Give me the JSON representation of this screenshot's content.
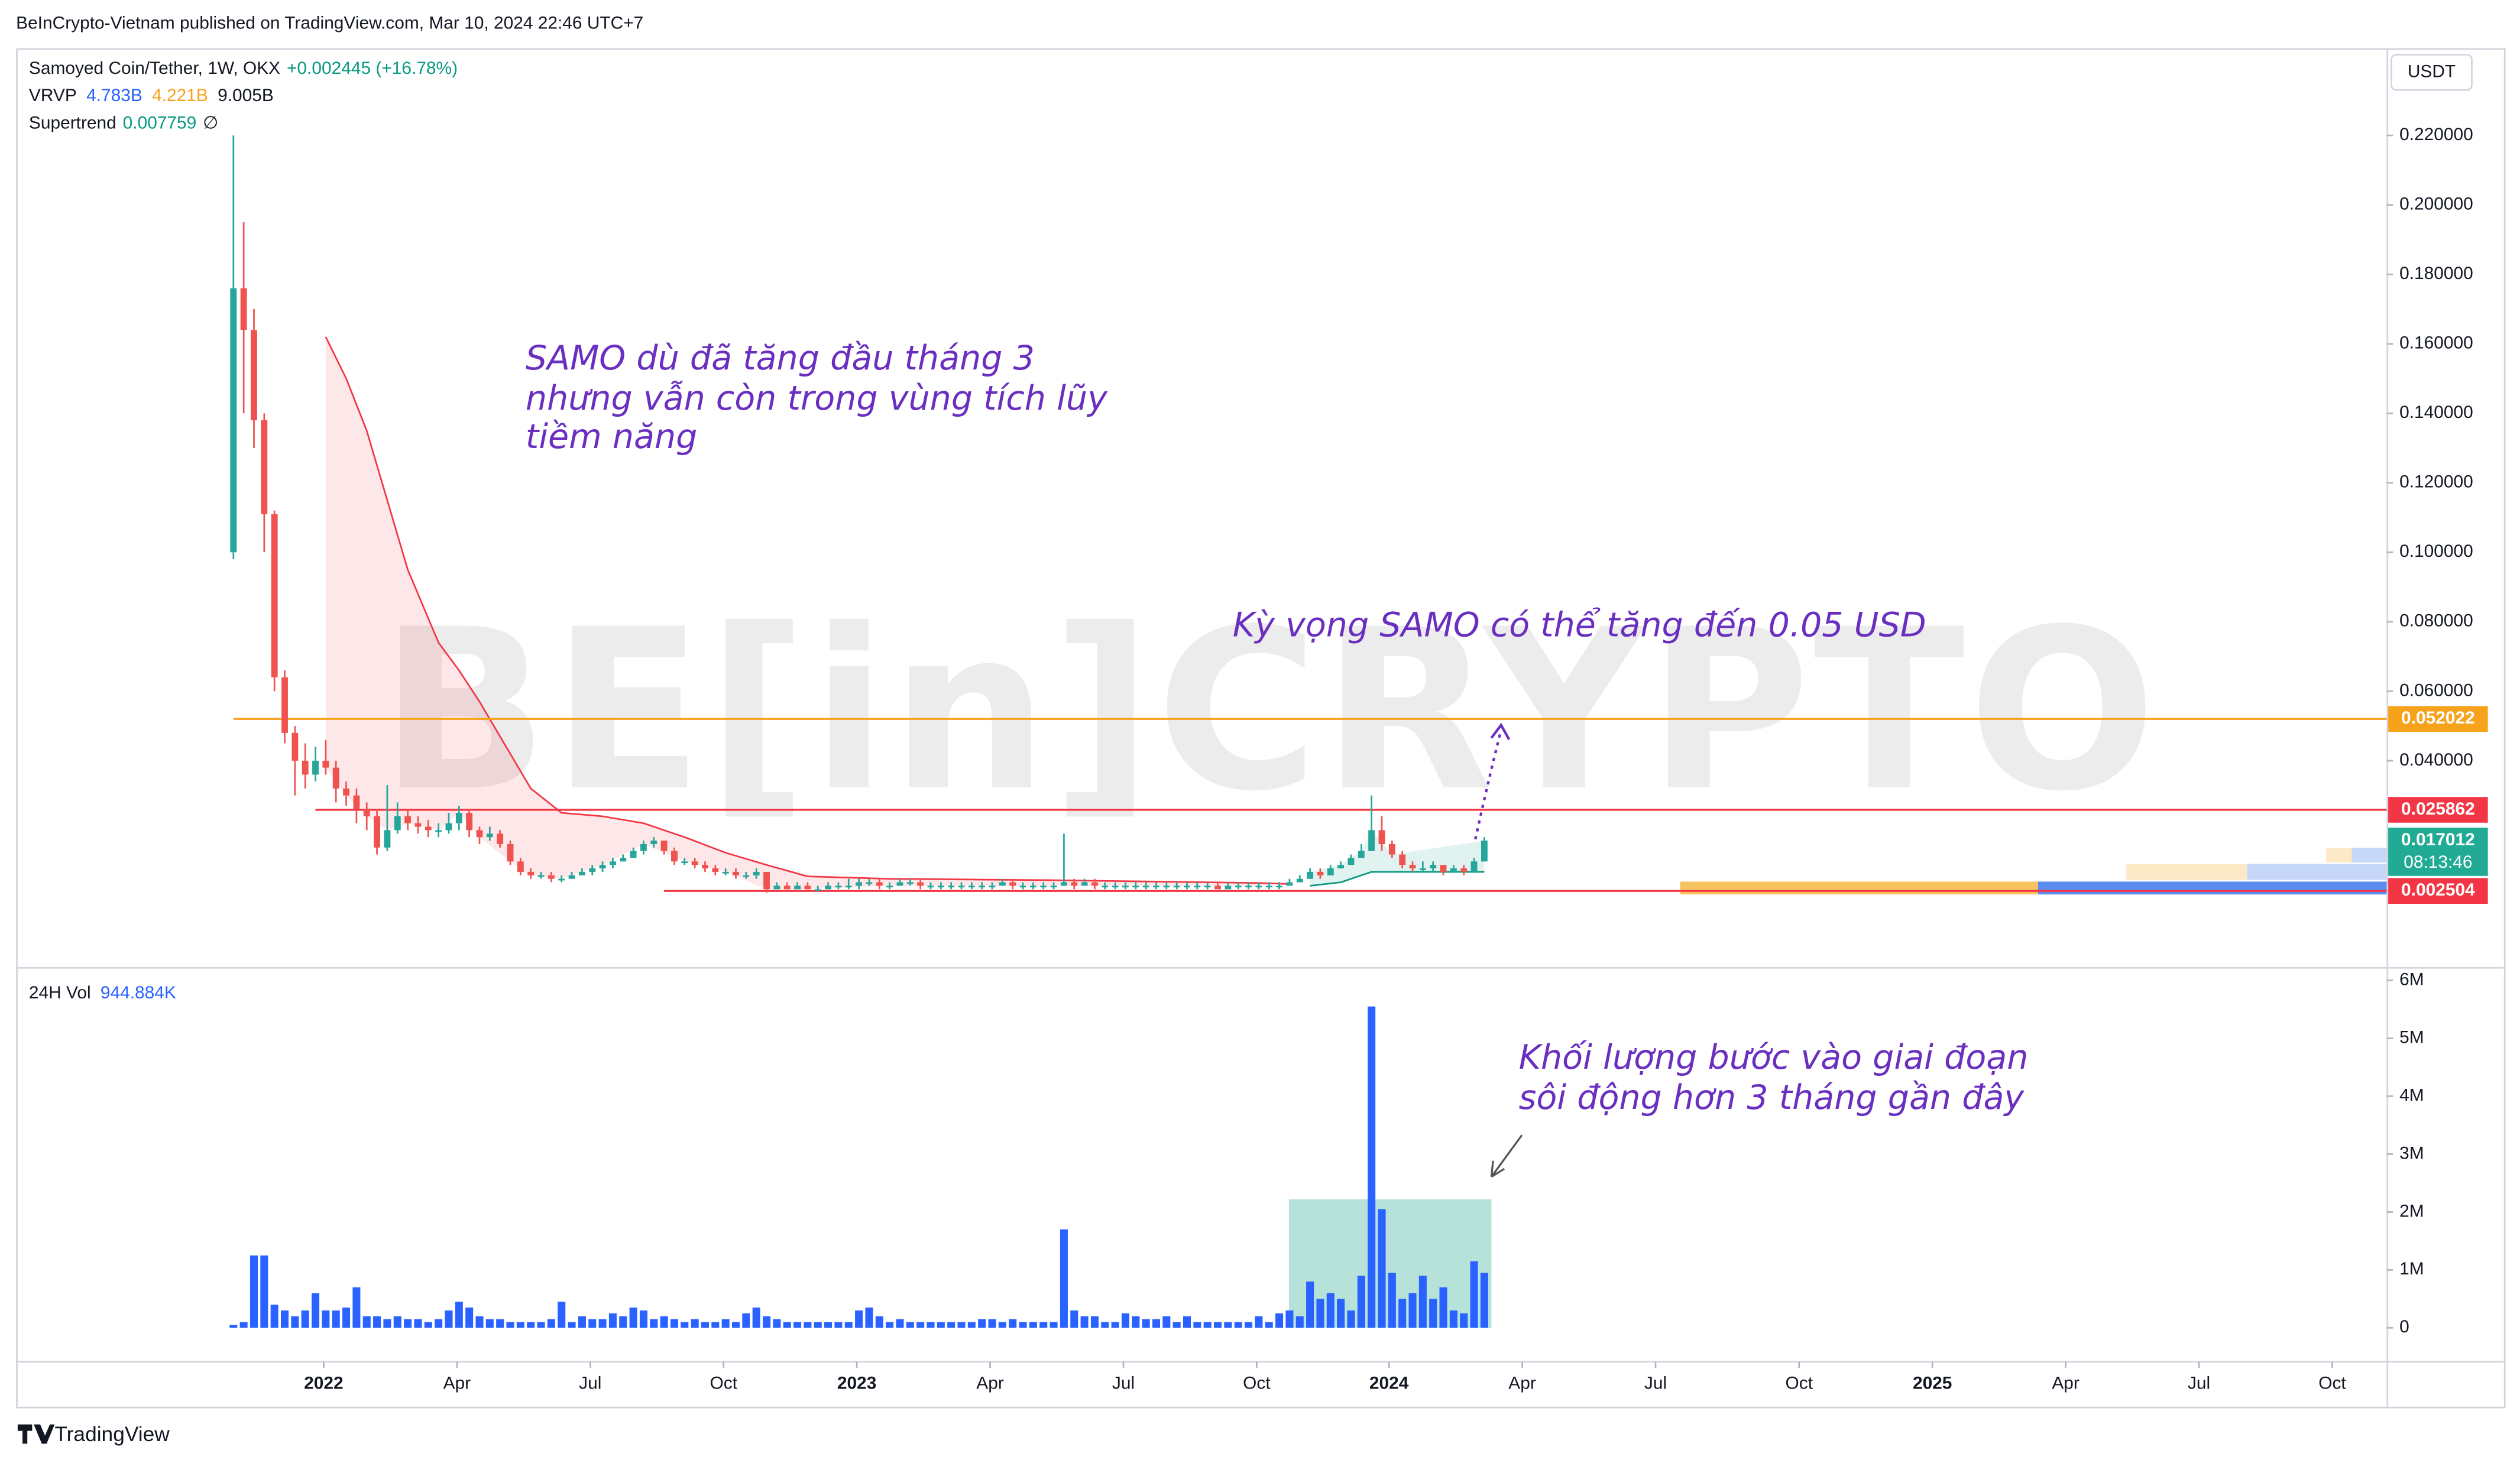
{
  "header": "BeInCrypto-Vietnam published on TradingView.com, Mar 10, 2024 22:46 UTC+7",
  "footer": "TradingView",
  "watermark": "BE[in]CRYPTO",
  "annotations": [
    [
      "SAMO dù đã tăng đầu tháng 3",
      "nhưng vẫn còn trong vùng tích lũy",
      "tiềm năng"
    ],
    [
      "Kỳ vọng SAMO có thể tăng đến 0.05 USD"
    ],
    [
      "Khối lượng bước vào giai đoạn",
      "sôi động hơn 3 tháng gần đây"
    ]
  ],
  "chart_data": [
    {
      "type": "candlestick",
      "title": "Samoyed Coin/Tether, 1W, OKX",
      "change": "+0.002445 (+16.78%)",
      "currency": "USDT",
      "up_color": "#26a69a",
      "down_color": "#ef5350",
      "open": [
        0.1,
        0.176,
        0.164,
        0.138,
        0.111,
        0.064,
        0.048,
        0.04,
        0.036,
        0.04,
        0.038,
        0.032,
        0.03,
        0.026,
        0.024,
        0.015,
        0.02,
        0.024,
        0.022,
        0.021,
        0.02,
        0.02,
        0.022,
        0.025,
        0.02,
        0.018,
        0.019,
        0.016,
        0.011,
        0.008,
        0.007,
        0.007,
        0.006,
        0.006,
        0.007,
        0.008,
        0.009,
        0.01,
        0.011,
        0.012,
        0.014,
        0.016,
        0.017,
        0.014,
        0.011,
        0.011,
        0.01,
        0.009,
        0.008,
        0.008,
        0.007,
        0.007,
        0.008,
        0.003,
        0.004,
        0.003,
        0.004,
        0.003,
        0.003,
        0.004,
        0.004,
        0.004,
        0.005,
        0.005,
        0.004,
        0.004,
        0.005,
        0.005,
        0.004,
        0.004,
        0.004,
        0.004,
        0.004,
        0.004,
        0.004,
        0.004,
        0.005,
        0.004,
        0.004,
        0.004,
        0.004,
        0.004,
        0.005,
        0.004,
        0.005,
        0.004,
        0.004,
        0.004,
        0.004,
        0.004,
        0.004,
        0.004,
        0.004,
        0.004,
        0.004,
        0.004,
        0.004,
        0.003,
        0.004,
        0.004,
        0.004,
        0.004,
        0.004,
        0.004,
        0.005,
        0.006,
        0.008,
        0.007,
        0.009,
        0.01,
        0.012,
        0.014,
        0.02,
        0.016,
        0.013,
        0.01,
        0.009,
        0.009,
        0.01,
        0.008,
        0.009,
        0.008,
        0.011
      ],
      "high": [
        0.22,
        0.195,
        0.17,
        0.14,
        0.112,
        0.066,
        0.05,
        0.045,
        0.044,
        0.046,
        0.04,
        0.034,
        0.032,
        0.028,
        0.026,
        0.033,
        0.028,
        0.026,
        0.024,
        0.023,
        0.022,
        0.025,
        0.027,
        0.026,
        0.021,
        0.021,
        0.02,
        0.017,
        0.012,
        0.009,
        0.008,
        0.008,
        0.007,
        0.008,
        0.009,
        0.01,
        0.011,
        0.012,
        0.013,
        0.015,
        0.017,
        0.018,
        0.017,
        0.015,
        0.012,
        0.012,
        0.011,
        0.01,
        0.009,
        0.009,
        0.008,
        0.009,
        0.008,
        0.005,
        0.005,
        0.005,
        0.005,
        0.004,
        0.005,
        0.005,
        0.006,
        0.006,
        0.006,
        0.006,
        0.005,
        0.006,
        0.006,
        0.006,
        0.005,
        0.005,
        0.005,
        0.005,
        0.005,
        0.005,
        0.005,
        0.006,
        0.006,
        0.005,
        0.005,
        0.005,
        0.005,
        0.019,
        0.006,
        0.006,
        0.006,
        0.005,
        0.005,
        0.005,
        0.005,
        0.005,
        0.005,
        0.005,
        0.005,
        0.005,
        0.005,
        0.005,
        0.005,
        0.005,
        0.005,
        0.005,
        0.005,
        0.005,
        0.005,
        0.006,
        0.007,
        0.009,
        0.009,
        0.01,
        0.011,
        0.013,
        0.016,
        0.03,
        0.024,
        0.017,
        0.014,
        0.011,
        0.011,
        0.011,
        0.01,
        0.01,
        0.01,
        0.012,
        0.018
      ],
      "low": [
        0.098,
        0.14,
        0.13,
        0.1,
        0.06,
        0.045,
        0.03,
        0.032,
        0.034,
        0.036,
        0.028,
        0.027,
        0.022,
        0.02,
        0.013,
        0.014,
        0.019,
        0.02,
        0.019,
        0.018,
        0.018,
        0.019,
        0.02,
        0.018,
        0.016,
        0.017,
        0.015,
        0.01,
        0.007,
        0.006,
        0.006,
        0.005,
        0.005,
        0.006,
        0.007,
        0.007,
        0.008,
        0.009,
        0.011,
        0.012,
        0.013,
        0.015,
        0.013,
        0.01,
        0.01,
        0.009,
        0.008,
        0.007,
        0.007,
        0.006,
        0.006,
        0.006,
        0.002,
        0.003,
        0.003,
        0.003,
        0.003,
        0.003,
        0.003,
        0.003,
        0.003,
        0.003,
        0.004,
        0.003,
        0.003,
        0.004,
        0.004,
        0.003,
        0.003,
        0.003,
        0.003,
        0.003,
        0.003,
        0.003,
        0.003,
        0.004,
        0.003,
        0.003,
        0.003,
        0.003,
        0.003,
        0.004,
        0.003,
        0.004,
        0.003,
        0.003,
        0.003,
        0.003,
        0.003,
        0.003,
        0.003,
        0.003,
        0.003,
        0.003,
        0.003,
        0.003,
        0.003,
        0.003,
        0.003,
        0.003,
        0.003,
        0.003,
        0.003,
        0.004,
        0.005,
        0.006,
        0.006,
        0.007,
        0.009,
        0.01,
        0.012,
        0.014,
        0.014,
        0.012,
        0.009,
        0.008,
        0.008,
        0.008,
        0.007,
        0.008,
        0.007,
        0.008,
        0.011
      ],
      "close": [
        0.176,
        0.164,
        0.138,
        0.111,
        0.064,
        0.048,
        0.04,
        0.036,
        0.04,
        0.038,
        0.032,
        0.03,
        0.026,
        0.024,
        0.015,
        0.02,
        0.024,
        0.022,
        0.021,
        0.02,
        0.02,
        0.022,
        0.025,
        0.02,
        0.018,
        0.019,
        0.016,
        0.011,
        0.008,
        0.007,
        0.007,
        0.006,
        0.006,
        0.007,
        0.008,
        0.009,
        0.01,
        0.011,
        0.012,
        0.014,
        0.016,
        0.017,
        0.014,
        0.011,
        0.011,
        0.01,
        0.009,
        0.008,
        0.008,
        0.007,
        0.007,
        0.008,
        0.003,
        0.004,
        0.003,
        0.004,
        0.003,
        0.003,
        0.004,
        0.004,
        0.004,
        0.005,
        0.005,
        0.004,
        0.004,
        0.005,
        0.005,
        0.004,
        0.004,
        0.004,
        0.004,
        0.004,
        0.004,
        0.004,
        0.004,
        0.005,
        0.004,
        0.004,
        0.004,
        0.004,
        0.004,
        0.005,
        0.004,
        0.005,
        0.004,
        0.004,
        0.004,
        0.004,
        0.004,
        0.004,
        0.004,
        0.004,
        0.004,
        0.004,
        0.004,
        0.004,
        0.003,
        0.004,
        0.004,
        0.004,
        0.004,
        0.004,
        0.004,
        0.005,
        0.006,
        0.008,
        0.007,
        0.009,
        0.01,
        0.012,
        0.014,
        0.02,
        0.016,
        0.013,
        0.01,
        0.009,
        0.009,
        0.01,
        0.008,
        0.009,
        0.008,
        0.011,
        0.017
      ],
      "xlim": [
        -21.2,
        210
      ],
      "xticks": [
        {
          "value": 8.8,
          "label": "2022"
        },
        {
          "value": 21.8,
          "label": "Apr"
        },
        {
          "value": 34.8,
          "label": "Jul"
        },
        {
          "value": 47.8,
          "label": "Oct"
        },
        {
          "value": 60.8,
          "label": "2023"
        },
        {
          "value": 73.8,
          "label": "Apr"
        },
        {
          "value": 86.8,
          "label": "Jul"
        },
        {
          "value": 99.8,
          "label": "Oct"
        },
        {
          "value": 112.7,
          "label": "2024"
        },
        {
          "value": 125.7,
          "label": "Apr"
        },
        {
          "value": 138.7,
          "label": "Jul"
        },
        {
          "value": 152.7,
          "label": "Oct"
        },
        {
          "value": 165.7,
          "label": "2025"
        },
        {
          "value": 178.7,
          "label": "Apr"
        },
        {
          "value": 191.7,
          "label": "Jul"
        },
        {
          "value": 204.7,
          "label": "Oct"
        }
      ],
      "ylim": [
        -0.0187,
        0.2451
      ],
      "yticks": [
        {
          "value": 0.22,
          "label": "0.220000"
        },
        {
          "value": 0.2,
          "label": "0.200000"
        },
        {
          "value": 0.18,
          "label": "0.180000"
        },
        {
          "value": 0.16,
          "label": "0.160000"
        },
        {
          "value": 0.14,
          "label": "0.140000"
        },
        {
          "value": 0.12,
          "label": "0.120000"
        },
        {
          "value": 0.1,
          "label": "0.100000"
        },
        {
          "value": 0.08,
          "label": "0.080000"
        },
        {
          "value": 0.06,
          "label": "0.060000"
        },
        {
          "value": 0.04,
          "label": "0.040000"
        }
      ],
      "levels": [
        {
          "value": 0.052022,
          "color": "#f7a21b",
          "from": 0
        },
        {
          "value": 0.025862,
          "color": "#f23645",
          "from": 8
        },
        {
          "value": 0.002504,
          "color": "#f23645",
          "from": 42
        }
      ],
      "last_price": 0.017012,
      "countdown": "08:13:46",
      "last_color": "#22ab94",
      "vrvp": {
        "label": "VRVP",
        "up_text": "4.783B",
        "down_text": "4.221B",
        "total_text": "9.005B",
        "up_color": "#5b8cf0",
        "down_color": "#f7c35f",
        "rows": [
          {
            "low": 0.0015,
            "high": 0.0052,
            "up": 3.0,
            "down": 3.08,
            "value_area": true
          },
          {
            "low": 0.0057,
            "high": 0.0103,
            "up": 1.2,
            "down": 1.04,
            "value_area": false
          },
          {
            "low": 0.0107,
            "high": 0.0149,
            "up": 0.3,
            "down": 0.22,
            "value_area": false
          }
        ]
      },
      "supertrend": {
        "label": "Supertrend",
        "value": 0.007759,
        "extra": "∅",
        "down": {
          "color": "#f23645",
          "x": [
            9,
            11,
            13,
            15,
            17,
            20,
            22,
            24,
            27,
            29,
            32,
            36,
            40,
            44,
            48,
            52,
            56,
            64,
            72,
            80,
            90,
            100,
            103
          ],
          "values": [
            0.162,
            0.15,
            0.135,
            0.115,
            0.095,
            0.074,
            0.066,
            0.057,
            0.042,
            0.032,
            0.025,
            0.024,
            0.022,
            0.018,
            0.0135,
            0.01,
            0.0067,
            0.006,
            0.0058,
            0.0056,
            0.0052,
            0.0048,
            0.0045
          ]
        },
        "up": {
          "color": "#089981",
          "x": [
            105,
            108,
            110,
            111,
            113,
            122
          ],
          "values": [
            0.004,
            0.005,
            0.007,
            0.008,
            0.008,
            0.008
          ]
        }
      }
    },
    {
      "type": "bar",
      "title": "24H Vol",
      "last": "944.884K",
      "color": "#2962ff",
      "values": [
        0.05,
        0.1,
        1.25,
        1.25,
        0.4,
        0.3,
        0.2,
        0.3,
        0.6,
        0.3,
        0.3,
        0.35,
        0.7,
        0.2,
        0.2,
        0.15,
        0.2,
        0.15,
        0.15,
        0.1,
        0.15,
        0.3,
        0.45,
        0.35,
        0.2,
        0.15,
        0.15,
        0.1,
        0.1,
        0.1,
        0.1,
        0.15,
        0.45,
        0.1,
        0.2,
        0.15,
        0.15,
        0.25,
        0.2,
        0.35,
        0.3,
        0.15,
        0.2,
        0.15,
        0.1,
        0.15,
        0.1,
        0.1,
        0.15,
        0.1,
        0.25,
        0.35,
        0.2,
        0.15,
        0.1,
        0.1,
        0.1,
        0.1,
        0.1,
        0.1,
        0.1,
        0.3,
        0.35,
        0.2,
        0.1,
        0.15,
        0.1,
        0.1,
        0.1,
        0.1,
        0.1,
        0.1,
        0.1,
        0.15,
        0.15,
        0.1,
        0.15,
        0.1,
        0.1,
        0.1,
        0.1,
        1.7,
        0.3,
        0.2,
        0.2,
        0.1,
        0.1,
        0.25,
        0.2,
        0.15,
        0.15,
        0.2,
        0.1,
        0.2,
        0.1,
        0.1,
        0.1,
        0.1,
        0.1,
        0.1,
        0.2,
        0.1,
        0.25,
        0.3,
        0.2,
        0.8,
        0.5,
        0.6,
        0.5,
        0.3,
        0.9,
        5.55,
        2.05,
        0.95,
        0.5,
        0.6,
        0.9,
        0.5,
        0.7,
        0.3,
        0.25,
        1.15,
        0.95
      ],
      "ylim": [
        -0.53,
        6.19
      ],
      "yticks": [
        {
          "value": 6,
          "label": "6M"
        },
        {
          "value": 5,
          "label": "5M"
        },
        {
          "value": 4,
          "label": "4M"
        },
        {
          "value": 3,
          "label": "3M"
        },
        {
          "value": 2,
          "label": "2M"
        },
        {
          "value": 1,
          "label": "1M"
        },
        0
      ]
    }
  ]
}
